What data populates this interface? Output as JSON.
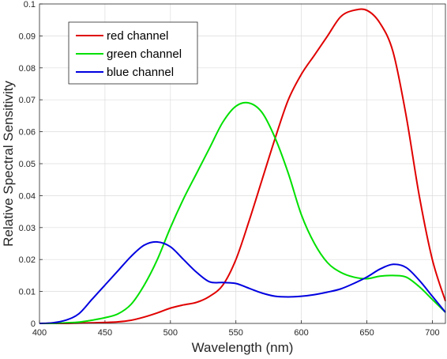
{
  "chart_data": {
    "type": "line",
    "title": "",
    "xlabel": "Wavelength (nm)",
    "ylabel": "Relative Spectral Sensitivity",
    "xlim": [
      400,
      710
    ],
    "ylim": [
      0,
      0.1
    ],
    "x_ticks": [
      "400",
      "450",
      "500",
      "550",
      "600",
      "650",
      "700"
    ],
    "y_ticks": [
      "0",
      "0.01",
      "0.02",
      "0.03",
      "0.04",
      "0.05",
      "0.06",
      "0.07",
      "0.08",
      "0.09",
      "0.1"
    ],
    "grid": true,
    "legend_position": "top-left",
    "x": [
      400,
      410,
      420,
      430,
      440,
      450,
      460,
      470,
      480,
      490,
      500,
      510,
      520,
      530,
      540,
      550,
      560,
      570,
      580,
      590,
      600,
      610,
      620,
      630,
      640,
      650,
      660,
      670,
      680,
      690,
      700,
      710
    ],
    "series": [
      {
        "name": "red channel",
        "color": "#e00000",
        "values": [
          0,
          0,
          0,
          0.0001,
          0.0002,
          0.0003,
          0.0005,
          0.001,
          0.002,
          0.0033,
          0.0048,
          0.0058,
          0.0066,
          0.0085,
          0.012,
          0.02,
          0.032,
          0.045,
          0.058,
          0.07,
          0.078,
          0.084,
          0.09,
          0.096,
          0.098,
          0.098,
          0.094,
          0.085,
          0.065,
          0.04,
          0.02,
          0.007
        ]
      },
      {
        "name": "green channel",
        "color": "#00e000",
        "values": [
          0,
          0,
          0.0002,
          0.0004,
          0.001,
          0.0018,
          0.003,
          0.006,
          0.012,
          0.02,
          0.03,
          0.039,
          0.047,
          0.055,
          0.063,
          0.068,
          0.069,
          0.066,
          0.058,
          0.047,
          0.034,
          0.025,
          0.019,
          0.016,
          0.0145,
          0.014,
          0.0148,
          0.015,
          0.0145,
          0.0115,
          0.0075,
          0.0035
        ]
      },
      {
        "name": "blue channel",
        "color": "#0000e0",
        "values": [
          0,
          0.0002,
          0.001,
          0.003,
          0.0075,
          0.012,
          0.0165,
          0.021,
          0.0245,
          0.0255,
          0.024,
          0.02,
          0.016,
          0.013,
          0.0128,
          0.0125,
          0.011,
          0.0095,
          0.0085,
          0.0083,
          0.0085,
          0.009,
          0.0098,
          0.0108,
          0.0125,
          0.0145,
          0.017,
          0.0185,
          0.0175,
          0.0135,
          0.0085,
          0.0035
        ]
      }
    ]
  }
}
